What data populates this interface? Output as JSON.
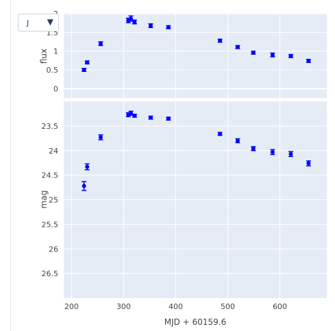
{
  "filter_dropdown": {
    "selected": "J",
    "arrow_icon": "triangle-down-icon"
  },
  "chart_data": [
    {
      "type": "scatter",
      "panel": "top",
      "ylabel": "flux",
      "xlabel": "",
      "xlim": [
        185,
        690
      ],
      "ylim": [
        -0.25,
        2.0
      ],
      "yticks": [
        "0",
        "0.5",
        "1",
        "1.5",
        "2"
      ],
      "ytick_values": [
        0,
        0.5,
        1,
        1.5,
        2
      ],
      "grid": true,
      "marker_color": "#0000ff",
      "x": [
        224,
        230,
        256,
        309,
        314,
        321,
        352,
        386,
        485,
        519,
        549,
        586,
        621,
        655
      ],
      "y": [
        0.5,
        0.7,
        1.2,
        1.82,
        1.87,
        1.78,
        1.68,
        1.64,
        1.28,
        1.11,
        0.96,
        0.9,
        0.87,
        0.74
      ],
      "error": [
        0.04,
        0.04,
        0.05,
        0.06,
        0.07,
        0.05,
        0.05,
        0.04,
        0.04,
        0.04,
        0.04,
        0.05,
        0.04,
        0.04
      ]
    },
    {
      "type": "scatter",
      "panel": "bottom",
      "ylabel": "mag",
      "xlabel": "MJD + 60159.6",
      "xlim": [
        185,
        690
      ],
      "ylim": [
        27.0,
        23.0
      ],
      "y_reversed": true,
      "yticks": [
        "23.5",
        "24",
        "24.5",
        "25",
        "25.5",
        "26",
        "26.5"
      ],
      "ytick_values": [
        23.5,
        24,
        24.5,
        25,
        25.5,
        26,
        26.5
      ],
      "xticks": [
        "200",
        "300",
        "400",
        "500",
        "600"
      ],
      "xtick_values": [
        200,
        300,
        400,
        500,
        600
      ],
      "grid": true,
      "marker_color": "#0000ff",
      "x": [
        224,
        230,
        256,
        309,
        314,
        321,
        352,
        386,
        485,
        519,
        549,
        586,
        621,
        655
      ],
      "y": [
        24.72,
        24.33,
        23.73,
        23.27,
        23.24,
        23.29,
        23.33,
        23.35,
        23.66,
        23.8,
        23.96,
        24.03,
        24.07,
        24.26
      ],
      "error": [
        0.09,
        0.06,
        0.05,
        0.04,
        0.04,
        0.03,
        0.03,
        0.03,
        0.03,
        0.04,
        0.04,
        0.05,
        0.05,
        0.05
      ]
    }
  ]
}
